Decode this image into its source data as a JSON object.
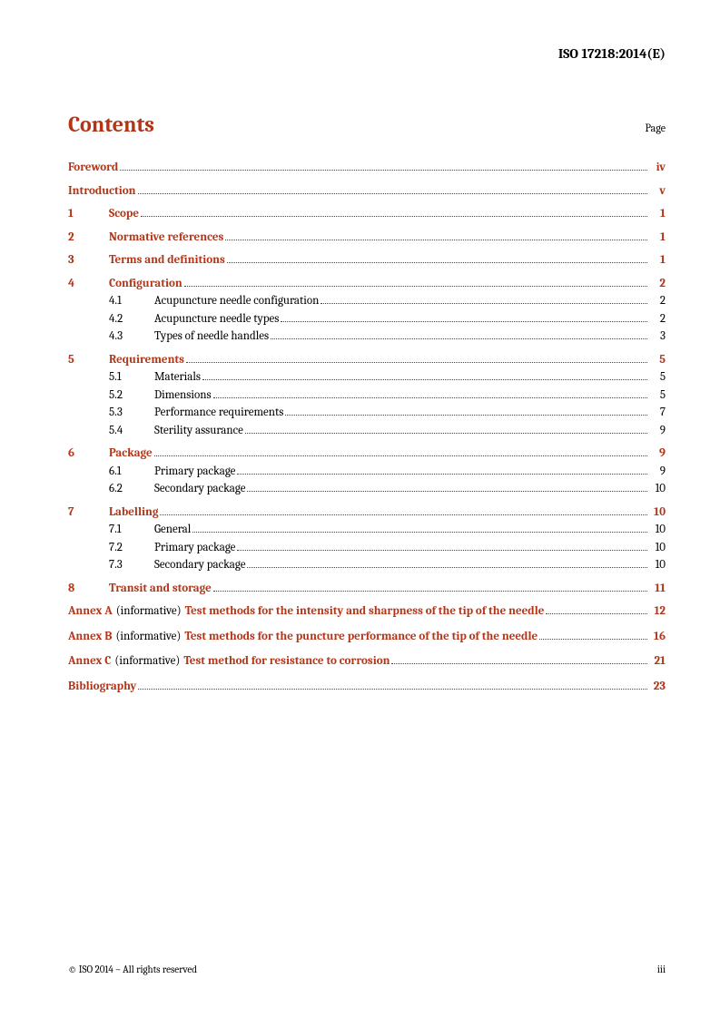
{
  "header": "ISO 17218:2014(E)",
  "title": "Contents",
  "pageLabel": "Page",
  "toc": {
    "foreword": {
      "label": "Foreword",
      "page": "iv"
    },
    "introduction": {
      "label": "Introduction",
      "page": "v"
    },
    "sections": [
      {
        "num": "1",
        "label": "Scope",
        "page": "1",
        "subs": []
      },
      {
        "num": "2",
        "label": "Normative references",
        "page": "1",
        "subs": []
      },
      {
        "num": "3",
        "label": "Terms and definitions",
        "page": "1",
        "subs": []
      },
      {
        "num": "4",
        "label": "Configuration",
        "page": "2",
        "subs": [
          {
            "num": "4.1",
            "label": "Acupuncture needle configuration",
            "page": "2"
          },
          {
            "num": "4.2",
            "label": "Acupuncture needle types",
            "page": "2"
          },
          {
            "num": "4.3",
            "label": "Types of needle handles",
            "page": "3"
          }
        ]
      },
      {
        "num": "5",
        "label": "Requirements",
        "page": "5",
        "subs": [
          {
            "num": "5.1",
            "label": "Materials",
            "page": "5"
          },
          {
            "num": "5.2",
            "label": "Dimensions",
            "page": "5"
          },
          {
            "num": "5.3",
            "label": "Performance requirements",
            "page": "7"
          },
          {
            "num": "5.4",
            "label": "Sterility assurance",
            "page": "9"
          }
        ]
      },
      {
        "num": "6",
        "label": "Package",
        "page": "9",
        "subs": [
          {
            "num": "6.1",
            "label": "Primary package",
            "page": "9"
          },
          {
            "num": "6.2",
            "label": "Secondary package",
            "page": "10"
          }
        ]
      },
      {
        "num": "7",
        "label": "Labelling",
        "page": "10",
        "subs": [
          {
            "num": "7.1",
            "label": "General",
            "page": "10"
          },
          {
            "num": "7.2",
            "label": "Primary package",
            "page": "10"
          },
          {
            "num": "7.3",
            "label": "Secondary package",
            "page": "10"
          }
        ]
      },
      {
        "num": "8",
        "label": "Transit and storage",
        "page": "11",
        "subs": []
      }
    ],
    "annexes": [
      {
        "num": "Annex A",
        "paren": "(informative)",
        "label": "Test methods for the intensity and sharpness of the tip of the needle",
        "page": "12"
      },
      {
        "num": "Annex B",
        "paren": "(informative)",
        "label": "Test methods for the puncture performance of the tip of the needle",
        "page": "16"
      },
      {
        "num": "Annex C",
        "paren": "(informative)",
        "label": "Test method for resistance to corrosion",
        "page": "21"
      }
    ],
    "bibliography": {
      "label": "Bibliography",
      "page": "23"
    }
  },
  "footer": {
    "left": "© ISO 2014 – All rights reserved",
    "right": "iii"
  },
  "colors": {
    "accent": "#b33518",
    "text": "#000000",
    "background": "#ffffff"
  }
}
